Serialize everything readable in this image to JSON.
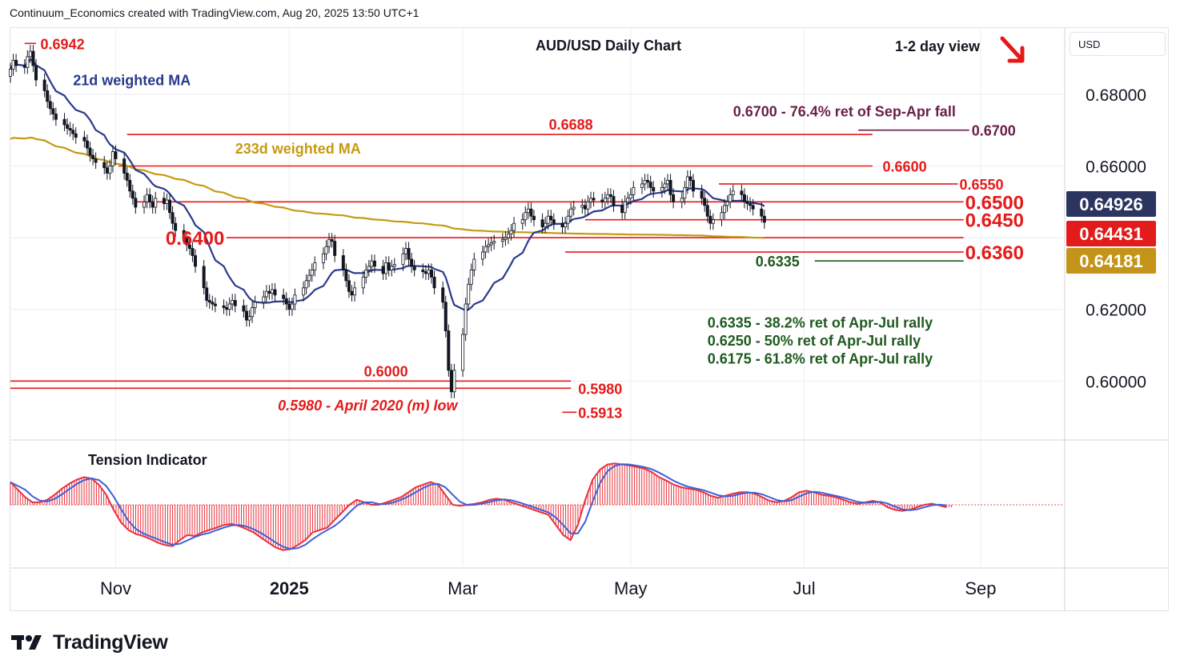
{
  "header": {
    "attribution": "Continuum_Economics created with TradingView.com, Aug 20, 2025 13:50 UTC+1"
  },
  "currency": "USD",
  "brand": {
    "name": "TradingView"
  },
  "colors": {
    "candle": "#131722",
    "red": "#e61919",
    "ma21": "#2a3a8c",
    "ma233": "#c59a12",
    "support_green": "#1f5a1f",
    "purple": "#6b1e4a",
    "tension_red": "#e8323c",
    "tension_blue": "#3f5fd8",
    "badge_blue": "#2c3560",
    "badge_red": "#e31b1b",
    "badge_gold": "#c49418",
    "grid": "#eceef2"
  },
  "chart_data": {
    "type": "candlestick",
    "title": "AUD/USD Daily Chart",
    "view_label": "1-2 day view",
    "view_direction": "down",
    "currency": "USD",
    "y_axis": {
      "range": [
        0.584,
        0.6985
      ],
      "ticks": [
        "0.68000",
        "0.66000",
        "0.62000",
        "0.60000"
      ],
      "tick_values": [
        0.68,
        0.66,
        0.62,
        0.6
      ]
    },
    "x_axis": {
      "labels": [
        "Nov",
        "2025",
        "Mar",
        "May",
        "Jul",
        "Sep"
      ],
      "label_dates": [
        "2024-11-01",
        "2025-01-01",
        "2025-03-03",
        "2025-05-01",
        "2025-07-01",
        "2025-09-01"
      ],
      "range": [
        "2024-09-25",
        "2025-09-30"
      ]
    },
    "grid": true,
    "current_price_badges": [
      {
        "label": "0.64926",
        "value": 0.64926,
        "color": "#2c3560",
        "meaning": "21d weighted MA"
      },
      {
        "label": "0.64431",
        "value": 0.64431,
        "color": "#e31b1b",
        "meaning": "last price"
      },
      {
        "label": "0.64181",
        "value": 0.64181,
        "color": "#c49418",
        "meaning": "233d weighted MA"
      }
    ],
    "levels": [
      {
        "label": "0.6600",
        "value": 0.66,
        "from": "2024-11-02",
        "to": "2025-07-25",
        "label_at": "2025-07-28",
        "size": "small"
      },
      {
        "label": "0.6550",
        "value": 0.655,
        "from": "2025-06-01",
        "to": "2025-08-24",
        "label_at": "2025-08-24",
        "size": "small"
      },
      {
        "label": "0.6500",
        "value": 0.65,
        "from": "2024-11-08",
        "to": "2025-08-26",
        "label_at": "2025-08-26",
        "size": "large"
      },
      {
        "label": "0.6450",
        "value": 0.645,
        "from": "2025-04-15",
        "to": "2025-08-26",
        "label_at": "2025-08-26",
        "size": "large"
      },
      {
        "label": "0.6400",
        "value": 0.64,
        "from": "2024-12-10",
        "to": "2025-08-26",
        "label_at": "2024-11-18",
        "size": "large"
      },
      {
        "label": "0.6360",
        "value": 0.636,
        "from": "2025-04-08",
        "to": "2025-08-26",
        "label_at": "2025-08-26",
        "size": "large"
      },
      {
        "label": "0.6688",
        "value": 0.6688,
        "from": "2024-11-05",
        "to": "2025-07-25",
        "label_at": "2025-04-10",
        "size": "small",
        "label_above": true
      },
      {
        "label": "0.6000",
        "value": 0.6,
        "from": "2024-09-25",
        "to": "2025-04-10",
        "label_at": "2025-02-04",
        "size": "small",
        "label_above": true
      },
      {
        "label": "0.5980",
        "value": 0.598,
        "from": "2024-09-25",
        "to": "2025-04-10",
        "label_at": "2025-04-12",
        "size": "small"
      },
      {
        "label": "0.5913",
        "value": 0.5913,
        "from": "2025-04-07",
        "to": "2025-04-12",
        "label_at": "2025-04-12",
        "size": "small",
        "tick": true
      },
      {
        "label": "0.6942",
        "value": 0.6942,
        "from": "2024-09-30",
        "to": "2024-10-04",
        "label_at": "2024-10-05",
        "size": "small",
        "tick": true
      }
    ],
    "purple_level": {
      "label": "0.6700",
      "value": 0.67,
      "from": "2025-07-20",
      "to": "2025-08-28"
    },
    "green_level": {
      "label": "0.6335",
      "value": 0.6335,
      "from": "2025-06-15",
      "to": "2025-08-26"
    },
    "annotations": [
      {
        "text": "0.6700 - 76.4% ret of Sep-Apr fall",
        "date": "2025-06-06",
        "value": 0.6738,
        "color": "purple"
      },
      {
        "text": "233d weighted MA",
        "date": "2024-12-13",
        "value": 0.6635,
        "color": "gold"
      },
      {
        "text": "21d weighted MA",
        "date": "2024-10-17",
        "value": 0.6825,
        "color": "blue"
      },
      {
        "text": "0.6335 - 38.2% ret of Apr-Jul rally",
        "date": "2025-05-28",
        "value": 0.6149,
        "color": "green"
      },
      {
        "text": "0.6250 - 50% ret of Apr-Jul rally",
        "date": "2025-05-28",
        "value": 0.6099,
        "color": "green"
      },
      {
        "text": "0.6175 - 61.8% ret of Apr-Jul rally",
        "date": "2025-05-28",
        "value": 0.6049,
        "color": "green"
      },
      {
        "text": "0.5980 - April 2020 (m) low",
        "date": "2024-12-28",
        "value": 0.5918,
        "color": "red",
        "italic": true
      }
    ],
    "price_series": {
      "start_date": "2024-09-25",
      "closes": [
        0.687,
        0.6895,
        0.688,
        0.6875,
        0.6905,
        0.692,
        0.688,
        0.684,
        0.681,
        0.678,
        0.676,
        0.6745,
        0.673,
        0.6715,
        0.6705,
        0.67,
        0.669,
        0.668,
        0.667,
        0.665,
        0.663,
        0.662,
        0.661,
        0.6595,
        0.658,
        0.66,
        0.664,
        0.662,
        0.658,
        0.656,
        0.653,
        0.651,
        0.6485,
        0.65,
        0.652,
        0.65,
        0.6485,
        0.651,
        0.6495,
        0.6505,
        0.647,
        0.644,
        0.642,
        0.64,
        0.638,
        0.637,
        0.635,
        0.632,
        0.626,
        0.6225,
        0.622,
        0.6215,
        0.621,
        0.6205,
        0.62,
        0.6215,
        0.6225,
        0.621,
        0.6195,
        0.617,
        0.618,
        0.6205,
        0.622,
        0.6235,
        0.625,
        0.6245,
        0.6255,
        0.624,
        0.623,
        0.6215,
        0.62,
        0.6215,
        0.624,
        0.626,
        0.628,
        0.6295,
        0.631,
        0.633,
        0.6355,
        0.6375,
        0.6395,
        0.639,
        0.635,
        0.631,
        0.628,
        0.625,
        0.624,
        0.626,
        0.629,
        0.631,
        0.632,
        0.6335,
        0.632,
        0.63,
        0.633,
        0.631,
        0.632,
        0.6325,
        0.6355,
        0.637,
        0.634,
        0.632,
        0.631,
        0.6305,
        0.63,
        0.631,
        0.629,
        0.626,
        0.622,
        0.614,
        0.603,
        0.597,
        0.603,
        0.613,
        0.6215,
        0.627,
        0.631,
        0.634,
        0.636,
        0.6375,
        0.638,
        0.6385,
        0.639,
        0.6395,
        0.64,
        0.641,
        0.642,
        0.644,
        0.645,
        0.647,
        0.648,
        0.646,
        0.645,
        0.643,
        0.644,
        0.646,
        0.645,
        0.644,
        0.643,
        0.644,
        0.646,
        0.648,
        0.6485,
        0.649,
        0.648,
        0.65,
        0.651,
        0.6505,
        0.65,
        0.651,
        0.652,
        0.6515,
        0.649,
        0.647,
        0.65,
        0.651,
        0.652,
        0.654,
        0.655,
        0.656,
        0.6555,
        0.654,
        0.653,
        0.654,
        0.655,
        0.656,
        0.652,
        0.65,
        0.651,
        0.654,
        0.657,
        0.656,
        0.653,
        0.651,
        0.649,
        0.646,
        0.644,
        0.645,
        0.647,
        0.649,
        0.65,
        0.652,
        0.653,
        0.652,
        0.65,
        0.6495,
        0.649,
        0.648,
        0.646,
        0.6443
      ]
    },
    "tension_indicator": {
      "label": "Tension Indicator",
      "values": [
        0.45,
        0.3,
        0.15,
        0.05,
        0.05,
        0.1,
        0.2,
        0.32,
        0.42,
        0.5,
        0.55,
        0.52,
        0.4,
        0.2,
        -0.1,
        -0.35,
        -0.5,
        -0.58,
        -0.62,
        -0.68,
        -0.75,
        -0.8,
        -0.82,
        -0.7,
        -0.6,
        -0.62,
        -0.55,
        -0.5,
        -0.45,
        -0.4,
        -0.38,
        -0.42,
        -0.48,
        -0.55,
        -0.65,
        -0.75,
        -0.85,
        -0.9,
        -0.88,
        -0.8,
        -0.7,
        -0.55,
        -0.5,
        -0.45,
        -0.3,
        -0.15,
        0.0,
        0.1,
        0.05,
        0.0,
        0.0,
        0.05,
        0.1,
        0.15,
        0.25,
        0.35,
        0.4,
        0.45,
        0.4,
        0.2,
        0.0,
        -0.02,
        0.0,
        0.02,
        0.05,
        0.1,
        0.12,
        0.1,
        0.05,
        0.0,
        -0.05,
        -0.1,
        -0.15,
        -0.2,
        -0.4,
        -0.6,
        -0.7,
        -0.4,
        0.1,
        0.5,
        0.7,
        0.8,
        0.82,
        0.8,
        0.78,
        0.75,
        0.72,
        0.65,
        0.55,
        0.48,
        0.4,
        0.35,
        0.32,
        0.3,
        0.25,
        0.18,
        0.14,
        0.18,
        0.22,
        0.25,
        0.25,
        0.22,
        0.15,
        0.08,
        0.05,
        0.08,
        0.15,
        0.25,
        0.28,
        0.25,
        0.2,
        0.18,
        0.15,
        0.1,
        0.05,
        0.02,
        0.05,
        0.08,
        0.05,
        -0.05,
        -0.1,
        -0.12,
        -0.1,
        -0.05,
        0.0,
        0.02,
        -0.01,
        -0.05
      ]
    }
  }
}
